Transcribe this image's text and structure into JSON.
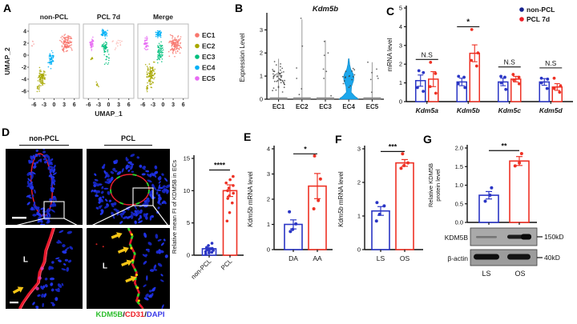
{
  "labels": {
    "a": "A",
    "b": "B",
    "c": "C",
    "d": "D",
    "e": "E",
    "f": "F",
    "g": "G"
  },
  "chart_data": {
    "panel_a": {
      "type": "scatter",
      "titles": [
        "non-PCL",
        "PCL 7d",
        "Merge"
      ],
      "xlabel": "UMAP_1",
      "ylabel": "UMAP_2",
      "xticks": [
        -6,
        -3,
        0,
        3,
        6
      ],
      "yticks": [
        4,
        2,
        0,
        -2,
        -4,
        -6
      ],
      "xlim": [
        -7.5,
        7.5
      ],
      "ylim": [
        -7.2,
        5.2
      ],
      "legend": [
        {
          "label": "EC1",
          "color": "#F8766D"
        },
        {
          "label": "EC2",
          "color": "#A8A800"
        },
        {
          "label": "EC3",
          "color": "#00BF7D"
        },
        {
          "label": "EC4",
          "color": "#00B0F6"
        },
        {
          "label": "EC5",
          "color": "#E76BF3"
        }
      ],
      "plots": [
        {
          "name": "non-PCL",
          "clusters": [
            [
              3.6,
              1.9,
              1.4,
              1.2,
              120,
              "#F8766D"
            ],
            [
              -0.9,
              -0.7,
              0.8,
              1.1,
              55,
              "#00B0F6"
            ],
            [
              -3.6,
              -3.6,
              1.0,
              1.2,
              95,
              "#A8A800"
            ],
            [
              -4.7,
              -5.4,
              0.4,
              0.6,
              12,
              "#A8A800"
            ],
            [
              -6.3,
              1.9,
              0.4,
              0.5,
              5,
              "#F8A0A0"
            ]
          ]
        },
        {
          "name": "PCL 7d",
          "clusters": [
            [
              -5.0,
              2.0,
              0.6,
              0.8,
              40,
              "#E76BF3"
            ],
            [
              -1.3,
              3.6,
              0.8,
              0.5,
              50,
              "#00B0F6"
            ],
            [
              -1.0,
              1.4,
              0.8,
              0.9,
              45,
              "#00BF7D"
            ],
            [
              -0.4,
              -0.6,
              0.9,
              1.0,
              14,
              "#00BF7D"
            ],
            [
              -5.0,
              -0.6,
              0.3,
              0.5,
              7,
              "#A8A800"
            ],
            [
              -3.4,
              -5.0,
              0.4,
              0.5,
              7,
              "#A8A800"
            ],
            [
              2.8,
              1.8,
              1.5,
              0.8,
              14,
              "#FBB4AE"
            ]
          ]
        },
        {
          "name": "Merge",
          "clusters": [
            [
              3.6,
              1.8,
              1.5,
              1.3,
              130,
              "#F8766D"
            ],
            [
              -5.0,
              2.0,
              0.6,
              0.8,
              40,
              "#E76BF3"
            ],
            [
              -1.3,
              3.6,
              0.8,
              0.5,
              50,
              "#00B0F6"
            ],
            [
              -0.9,
              0.6,
              0.9,
              1.4,
              70,
              "#00BF7D"
            ],
            [
              -3.5,
              -3.3,
              1.1,
              1.5,
              110,
              "#A8A800"
            ],
            [
              -4.7,
              -5.5,
              0.4,
              0.6,
              12,
              "#A8A800"
            ]
          ]
        }
      ]
    },
    "panel_b": {
      "type": "violin",
      "title": "Kdm5b",
      "ylabel": "Expression Level",
      "ylim": [
        0,
        3.6
      ],
      "yticks": [
        0,
        1,
        2,
        3
      ],
      "categories": [
        "EC1",
        "EC2",
        "EC3",
        "EC4",
        "EC5"
      ],
      "violins": [
        {
          "line_max": 1.75,
          "cloud": {
            "n": 52,
            "y_min": 0.15,
            "y_max": 1.75
          },
          "points": []
        },
        {
          "line_max": 3.45,
          "points": [
            3.5,
            2.3,
            1.35,
            0.9,
            0.45,
            0.2
          ]
        },
        {
          "line_max": 2.55,
          "points": [
            2.5,
            2.0,
            1.9,
            1.3,
            1.2,
            0.9,
            0.15
          ]
        },
        {
          "filled": true,
          "color": "#1CA7EC",
          "line_max": 1.75,
          "profile": [
            [
              0,
              12
            ],
            [
              0.15,
              7
            ],
            [
              0.3,
              3
            ],
            [
              0.55,
              3.5
            ],
            [
              0.8,
              6
            ],
            [
              0.95,
              6.5
            ],
            [
              1.1,
              5.5
            ],
            [
              1.3,
              2.5
            ],
            [
              1.5,
              1.2
            ],
            [
              1.75,
              0.4
            ]
          ],
          "cloud": {
            "n": 16,
            "y_min": 0.4,
            "y_max": 1.6
          },
          "points": []
        },
        {
          "line_max": 1.6,
          "points": [
            1.6,
            1.3,
            1.15,
            1.0,
            0.9,
            0.85,
            0.3
          ]
        }
      ]
    },
    "panel_c": {
      "type": "bar",
      "ylabel": "mRNA level",
      "ylim": [
        0,
        5
      ],
      "yticks": [
        0,
        1,
        2,
        3,
        4,
        5
      ],
      "categories": [
        "Kdm5a",
        "Kdm5b",
        "Kdm5c",
        "Kdm5d"
      ],
      "series": [
        {
          "name": "non-PCL",
          "color": "#2A35C5",
          "values": [
            1.12,
            1.05,
            1.05,
            1.05
          ],
          "errors": [
            0.3,
            0.2,
            0.2,
            0.18
          ],
          "points": [
            [
              0.55,
              0.75,
              1.55,
              1.65
            ],
            [
              0.75,
              0.95,
              1.3,
              1.35
            ],
            [
              0.65,
              1.0,
              1.3,
              1.35
            ],
            [
              0.7,
              1.0,
              1.2,
              1.25
            ]
          ]
        },
        {
          "name": "PCL 7d",
          "color": "#EE3124",
          "values": [
            1.2,
            2.58,
            1.2,
            0.78
          ],
          "errors": [
            0.4,
            0.45,
            0.15,
            0.18
          ],
          "points": [
            [
              0.45,
              0.8,
              1.5,
              2.1
            ],
            [
              1.9,
              2.2,
              2.6,
              3.85
            ],
            [
              0.95,
              1.15,
              1.3,
              1.45
            ],
            [
              0.5,
              0.7,
              0.85,
              1.25
            ]
          ]
        }
      ],
      "sig": [
        {
          "label": "N.S",
          "y": 2.25
        },
        {
          "label": "*",
          "y": 4.0
        },
        {
          "label": "N.S",
          "y": 1.85
        },
        {
          "label": "N.S",
          "y": 1.8
        }
      ],
      "legend": [
        {
          "label": "non-PCL",
          "color": "#16228E"
        },
        {
          "label": "PCL 7d",
          "color": "#EE1C25"
        }
      ]
    },
    "panel_d": {
      "type": "bar",
      "ylabel": "Relative mean FI of KDM5B in ECs",
      "ylim": [
        0,
        15
      ],
      "yticks": [
        0,
        5,
        10,
        15
      ],
      "rotate_labels": true,
      "bars": [
        {
          "label": "non-PCL",
          "color": "#2A35C5",
          "value": 1.0,
          "error": 0.15,
          "points": [
            0.2,
            0.35,
            0.45,
            0.55,
            0.65,
            0.75,
            0.85,
            0.95,
            1.05,
            1.2,
            1.5,
            1.85
          ]
        },
        {
          "label": "PCL",
          "color": "#EE3124",
          "value": 10.0,
          "error": 0.9,
          "points": [
            5.3,
            6.6,
            8.1,
            8.8,
            9.2,
            9.6,
            10.0,
            10.4,
            10.8,
            11.2,
            11.7,
            12.2
          ]
        }
      ],
      "sig": {
        "label": "****",
        "y": 13.2
      },
      "micro": {
        "header_left": "non-PCL",
        "header_right": "PCL",
        "lumen_label": "L",
        "caption": {
          "parts": [
            {
              "text": "KDM5B",
              "color": "#2DBE2D"
            },
            {
              "text": "/",
              "color": "#111111"
            },
            {
              "text": "CD31",
              "color": "#ED1C24"
            },
            {
              "text": "/",
              "color": "#111111"
            },
            {
              "text": "DAPI",
              "color": "#3A3AE8"
            }
          ]
        },
        "images": {
          "top_left": {
            "kind": "vessel",
            "scalebar": true
          },
          "top_right": {
            "kind": "ring"
          },
          "bottom_left": {
            "kind": "zoom_red",
            "lumen": [
              0.26,
              0.42
            ],
            "arrows": [
              [
                0.1,
                0.8
              ]
            ],
            "scalebar": true
          },
          "bottom_right": {
            "kind": "zoom_multi",
            "lumen": [
              0.22,
              0.5
            ],
            "arrows": [
              [
                0.3,
                0.12
              ],
              [
                0.38,
                0.3
              ],
              [
                0.42,
                0.46
              ],
              [
                0.47,
                0.66
              ]
            ]
          }
        }
      }
    },
    "panel_e": {
      "type": "bar",
      "ylabel_italic": "Kdm5b",
      "ylabel_rest": " mRNA level",
      "ylim": [
        0,
        4
      ],
      "yticks": [
        0,
        1,
        2,
        3,
        4
      ],
      "bars": [
        {
          "label": "DA",
          "color": "#2A35C5",
          "value": 1.0,
          "error": 0.18,
          "points": [
            0.72,
            0.8,
            1.02,
            1.5
          ]
        },
        {
          "label": "AA",
          "color": "#EE3124",
          "value": 2.52,
          "error": 0.5,
          "points": [
            1.62,
            1.95,
            2.8,
            3.72
          ]
        }
      ],
      "sig": {
        "label": "*",
        "y": 3.8
      }
    },
    "panel_f": {
      "type": "bar",
      "ylabel_italic": "Kdm5b",
      "ylabel_rest": " mRNA level",
      "ylim": [
        0,
        3
      ],
      "yticks": [
        0,
        1,
        2,
        3
      ],
      "bars": [
        {
          "label": "LS",
          "color": "#2A35C5",
          "value": 1.15,
          "error": 0.13,
          "points": [
            0.85,
            1.05,
            1.3,
            1.4
          ]
        },
        {
          "label": "OS",
          "color": "#EE3124",
          "value": 2.58,
          "error": 0.1,
          "points": [
            2.42,
            2.5,
            2.58,
            2.85
          ]
        }
      ],
      "sig": {
        "label": "***",
        "y": 2.92
      }
    },
    "panel_g": {
      "type": "bar",
      "ylabel_lines": [
        "Relative KDM5B",
        "protein level"
      ],
      "ylim": [
        0,
        2
      ],
      "yticks": [
        0,
        0.5,
        1,
        1.5,
        2
      ],
      "ydecimals": 1,
      "bars": [
        {
          "label": "LS",
          "color": "#2A35C5",
          "value": 0.73,
          "error": 0.1,
          "points": [
            0.57,
            0.73,
            0.93
          ]
        },
        {
          "label": "OS",
          "color": "#EE3124",
          "value": 1.65,
          "error": 0.12,
          "points": [
            1.52,
            1.6,
            1.85
          ]
        }
      ],
      "sig": {
        "label": "**",
        "y": 1.93
      },
      "blot": {
        "rows": [
          {
            "label": "KDM5B",
            "marker": "150kD"
          },
          {
            "label": "β-actin",
            "marker": "40kD"
          }
        ],
        "lanes": [
          "LS",
          "OS"
        ]
      }
    }
  }
}
